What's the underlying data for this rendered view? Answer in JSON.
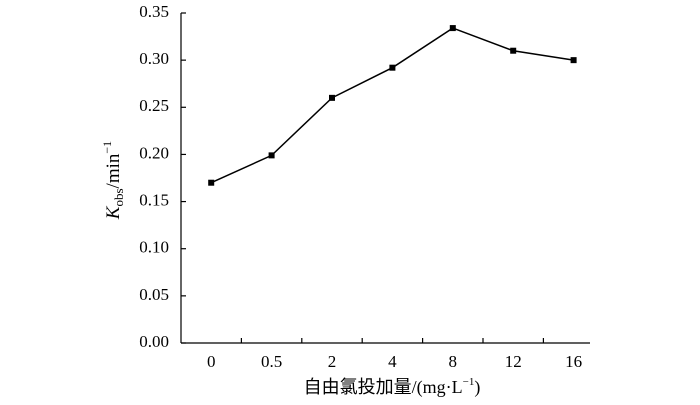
{
  "chart_data": {
    "type": "line",
    "y_label": {
      "symbol": "K",
      "subscript": "obs",
      "unit": "/min",
      "superscript": "−1"
    },
    "x_label": {
      "text": "自由氯投加量/(mg·L",
      "superscript": "−1",
      "close": ")"
    },
    "categories": [
      "0",
      "0.5",
      "2",
      "4",
      "8",
      "12",
      "16"
    ],
    "series": [
      {
        "color": "#000000",
        "values": [
          0.17,
          0.199,
          0.26,
          0.292,
          0.334,
          0.31,
          0.3
        ]
      }
    ],
    "ylim": [
      0,
      0.35
    ],
    "yticks": [
      {
        "value": 0,
        "label": "0.00"
      },
      0.05,
      {
        "value": 0.1,
        "label": "0.10"
      },
      0.15,
      {
        "value": 0.2,
        "label": "0.20"
      },
      0.25,
      {
        "value": 0.3,
        "label": "0.30"
      },
      0.35
    ]
  }
}
